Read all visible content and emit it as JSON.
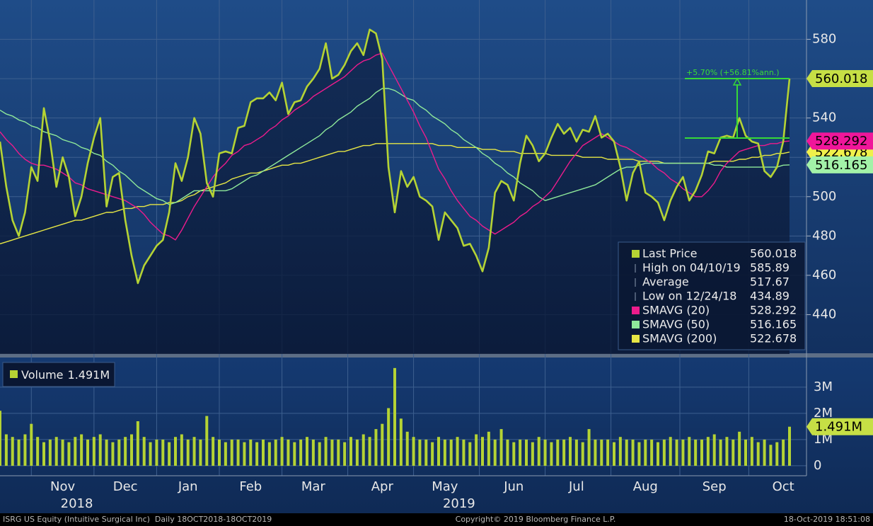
{
  "chart_data": [
    {
      "type": "line",
      "categories": [
        null,
        null,
        null,
        null,
        null,
        null,
        null,
        null,
        null,
        null,
        "Nov",
        null,
        null,
        null,
        null,
        null,
        null,
        null,
        null,
        null,
        "Dec",
        null,
        null,
        null,
        null,
        null,
        null,
        null,
        null,
        null,
        "Jan",
        null,
        null,
        null,
        null,
        null,
        null,
        null,
        null,
        null,
        "Feb",
        null,
        null,
        null,
        null,
        null,
        null,
        null,
        null,
        null,
        "Mar",
        null,
        null,
        null,
        null,
        null,
        null,
        null,
        null,
        null,
        null,
        "Apr",
        null,
        null,
        null,
        null,
        null,
        null,
        null,
        null,
        null,
        "May",
        null,
        null,
        null,
        null,
        null,
        null,
        null,
        null,
        null,
        null,
        "Jun",
        null,
        null,
        null,
        null,
        null,
        null,
        null,
        null,
        null,
        "Jul",
        null,
        null,
        null,
        null,
        null,
        null,
        null,
        null,
        null,
        null,
        "Aug",
        null,
        null,
        null,
        null,
        null,
        null,
        null,
        null,
        null,
        null,
        "Sep",
        null,
        null,
        null,
        null,
        null,
        null,
        null,
        null,
        null,
        null,
        "Oct",
        null
      ],
      "year_labels": [
        "2018",
        "2019"
      ],
      "series": [
        {
          "name": "Last Price",
          "color": "#b5d334",
          "values": [
            528,
            505,
            488,
            480,
            492,
            515,
            508,
            545,
            528,
            505,
            520,
            510,
            490,
            500,
            517,
            530,
            540,
            495,
            510,
            512,
            488,
            470,
            456,
            465,
            470,
            475,
            478,
            492,
            517,
            508,
            520,
            540,
            532,
            507,
            500,
            522,
            523,
            522,
            535,
            536,
            548,
            550,
            550,
            553,
            549,
            558,
            542,
            548,
            549,
            556,
            560,
            565,
            578,
            560,
            562,
            567,
            574,
            578,
            572,
            585,
            583,
            570,
            515,
            492,
            513,
            505,
            510,
            500,
            498,
            495,
            478,
            492,
            488,
            484,
            475,
            476,
            470,
            462,
            474,
            502,
            508,
            506,
            498,
            517,
            531,
            526,
            518,
            522,
            530,
            537,
            532,
            535,
            528,
            534,
            533,
            541,
            530,
            532,
            528,
            515,
            498,
            512,
            518,
            502,
            500,
            497,
            488,
            498,
            505,
            510,
            498,
            503,
            511,
            523,
            522,
            530,
            531,
            530,
            540,
            531,
            528,
            527,
            513,
            510,
            515,
            528,
            560.018
          ]
        },
        {
          "name": "SMAVG (20)",
          "color": "#ec1c8c",
          "values": [
            533,
            529,
            526,
            522,
            519,
            517,
            516,
            516,
            515,
            514,
            512,
            510,
            507,
            506,
            504,
            503,
            502,
            501,
            500,
            499,
            498,
            496,
            494,
            491,
            487,
            484,
            481,
            480,
            478,
            483,
            489,
            495,
            500,
            505,
            510,
            514,
            517,
            521,
            523,
            526,
            527,
            529,
            531,
            534,
            536,
            539,
            541,
            544,
            546,
            548,
            551,
            553,
            555,
            557,
            559,
            561,
            564,
            567,
            569,
            570,
            572,
            573,
            567,
            561,
            555,
            549,
            543,
            536,
            530,
            522,
            514,
            509,
            503,
            498,
            494,
            490,
            488,
            485,
            483,
            481,
            483,
            485,
            487,
            490,
            492,
            495,
            497,
            500,
            503,
            508,
            513,
            518,
            522,
            526,
            528,
            530,
            532,
            530,
            528,
            526,
            525,
            523,
            521,
            519,
            517,
            514,
            512,
            509,
            507,
            504,
            502,
            500,
            500,
            503,
            507,
            513,
            517,
            520,
            523,
            524,
            525,
            526,
            526,
            527,
            527,
            528,
            528.292
          ]
        },
        {
          "name": "SMAVG (50)",
          "color": "#8ee89a",
          "values": [
            544,
            542,
            541,
            539,
            538,
            536,
            535,
            533,
            532,
            531,
            529,
            528,
            527,
            525,
            524,
            522,
            521,
            518,
            516,
            513,
            511,
            508,
            505,
            503,
            501,
            499,
            498,
            496,
            497,
            499,
            501,
            503,
            503,
            503,
            503,
            503,
            503,
            504,
            506,
            508,
            510,
            511,
            513,
            515,
            517,
            519,
            521,
            523,
            525,
            527,
            529,
            531,
            534,
            536,
            539,
            541,
            543,
            546,
            548,
            550,
            553,
            555,
            555,
            554,
            552,
            550,
            549,
            546,
            544,
            541,
            539,
            537,
            534,
            532,
            529,
            527,
            525,
            522,
            520,
            517,
            515,
            512,
            510,
            507,
            505,
            503,
            500,
            498,
            499,
            500,
            501,
            502,
            503,
            504,
            505,
            506,
            508,
            510,
            512,
            514,
            515,
            515,
            516,
            517,
            517,
            517,
            517,
            517,
            517,
            517,
            517,
            517,
            517,
            517,
            516,
            516,
            515,
            515,
            515,
            515,
            515,
            515,
            515,
            515,
            515,
            516,
            516.165
          ]
        },
        {
          "name": "SMAVG (200)",
          "color": "#e6e645",
          "values": [
            476,
            477,
            478,
            479,
            480,
            481,
            482,
            483,
            484,
            485,
            486,
            487,
            488,
            488,
            489,
            490,
            491,
            492,
            492,
            493,
            494,
            494,
            495,
            495,
            496,
            496,
            496,
            497,
            497,
            498,
            500,
            501,
            503,
            504,
            505,
            506,
            507,
            509,
            510,
            511,
            512,
            512,
            513,
            514,
            515,
            516,
            516,
            517,
            517,
            518,
            519,
            520,
            521,
            522,
            523,
            523,
            524,
            525,
            526,
            526,
            527,
            527,
            527,
            527,
            527,
            527,
            527,
            527,
            527,
            527,
            526,
            526,
            526,
            525,
            525,
            525,
            525,
            524,
            524,
            524,
            523,
            523,
            523,
            522,
            522,
            522,
            522,
            522,
            521,
            521,
            521,
            521,
            521,
            520,
            520,
            520,
            520,
            519,
            519,
            519,
            519,
            519,
            518,
            518,
            518,
            518,
            517,
            517,
            517,
            517,
            517,
            517,
            517,
            517,
            518,
            518,
            518,
            518,
            519,
            519,
            520,
            520,
            521,
            521,
            522,
            522,
            522.678
          ]
        }
      ],
      "ylim": [
        420,
        600
      ],
      "yticks": [
        440,
        460,
        480,
        500,
        520,
        540,
        560,
        580
      ],
      "grid": true,
      "stats": [
        {
          "label": "High on 04/10/19",
          "value": 585.89
        },
        {
          "label": "Average",
          "value": 517.67
        },
        {
          "label": "Low on 12/24/18",
          "value": 434.89
        }
      ],
      "annotation": {
        "text": "+5.70% (+56.81%ann.)",
        "from": 529.82,
        "to": 560.018
      }
    },
    {
      "type": "bar",
      "name": "Volume",
      "color": "#b5d334",
      "values": [
        2.1,
        1.2,
        1.1,
        1.0,
        1.2,
        1.6,
        1.1,
        0.9,
        1.0,
        1.1,
        1.0,
        0.9,
        1.1,
        1.2,
        1.0,
        1.1,
        1.2,
        1.0,
        0.9,
        1.0,
        1.1,
        1.2,
        1.7,
        1.1,
        0.9,
        1.0,
        1.0,
        0.9,
        1.1,
        1.2,
        1.0,
        1.1,
        1.0,
        1.9,
        1.1,
        1.0,
        0.9,
        1.0,
        1.0,
        0.9,
        1.0,
        0.9,
        1.0,
        0.9,
        1.0,
        1.1,
        1.0,
        0.9,
        1.0,
        1.1,
        1.0,
        0.9,
        1.1,
        1.0,
        1.0,
        0.9,
        1.1,
        1.0,
        1.2,
        1.1,
        1.4,
        1.6,
        2.2,
        3.73,
        1.8,
        1.3,
        1.1,
        1.0,
        1.0,
        0.9,
        1.1,
        1.0,
        1.0,
        1.1,
        1.0,
        0.9,
        1.2,
        1.1,
        1.3,
        1.0,
        1.4,
        1.0,
        0.9,
        1.0,
        1.0,
        0.9,
        1.1,
        1.0,
        0.9,
        1.0,
        1.0,
        1.1,
        1.0,
        0.9,
        1.4,
        1.0,
        1.0,
        1.0,
        0.9,
        1.1,
        1.0,
        1.0,
        0.9,
        1.0,
        1.0,
        0.9,
        1.0,
        1.1,
        1.0,
        1.0,
        1.1,
        1.0,
        1.0,
        1.1,
        1.2,
        1.0,
        1.1,
        1.0,
        1.3,
        1.0,
        1.1,
        0.9,
        1.0,
        0.8,
        0.9,
        1.0,
        1.491
      ],
      "value_labels": [
        null,
        null,
        null,
        null,
        null,
        null,
        null,
        null,
        null,
        null,
        null,
        null,
        null,
        null,
        null,
        null,
        null,
        null,
        null,
        null,
        null,
        null,
        null,
        null,
        null,
        null,
        null,
        null,
        null,
        null,
        null,
        null,
        null,
        null,
        null,
        null,
        null,
        null,
        null,
        null,
        null,
        null,
        null,
        null,
        null,
        null,
        null,
        null,
        null,
        null,
        null,
        null,
        null,
        null,
        null,
        null,
        null,
        null,
        null,
        null,
        null,
        null,
        null,
        null,
        null,
        null,
        null,
        null,
        null,
        null,
        null,
        null,
        null,
        null,
        null,
        null,
        null,
        null,
        null,
        null,
        null,
        null,
        null,
        null,
        null,
        null,
        null,
        null,
        null,
        null,
        null,
        null,
        null,
        null,
        null,
        null,
        null,
        null,
        null,
        null,
        null,
        null,
        null,
        null,
        null,
        null,
        null,
        null,
        null,
        null,
        null,
        null,
        null,
        null,
        null,
        null,
        null,
        null,
        null,
        null,
        null,
        null,
        null,
        null,
        null,
        null,
        "1.491M"
      ],
      "ylim": [
        -0.38,
        4.05
      ],
      "yticks": [
        0,
        {
          "value": 1,
          "label": "1M"
        },
        {
          "value": 2,
          "label": "2M"
        },
        {
          "value": 3,
          "label": "3M"
        }
      ]
    }
  ],
  "footer": {
    "left": "ISRG US Equity (Intuitive Surgical Inc)  Daily 18OCT2018-18OCT2019",
    "center": "Copyright© 2019 Bloomberg Finance L.P.",
    "right": "18-Oct-2019 18:51:08"
  }
}
